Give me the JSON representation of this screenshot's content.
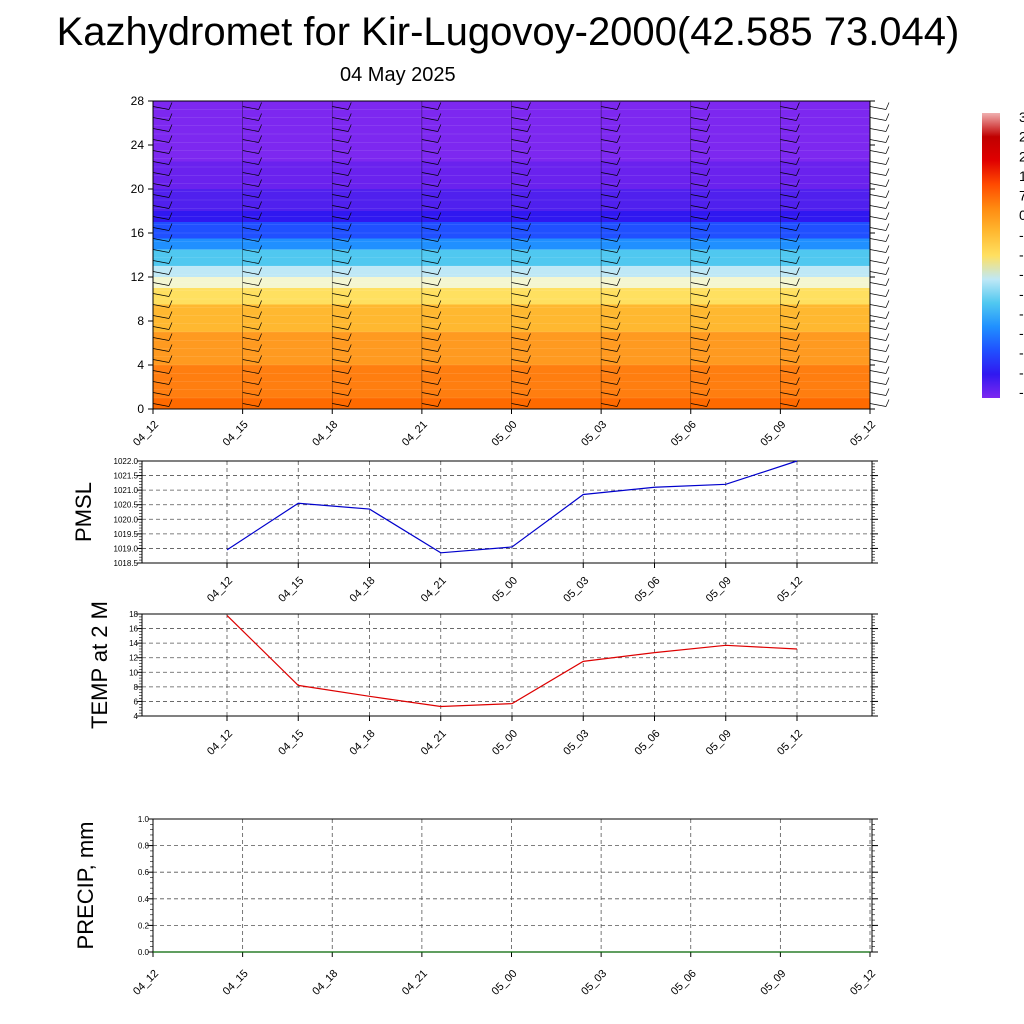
{
  "title": "Kazhydromet for Kir-Lugovoy-2000(42.585 73.044)",
  "subtitle": "04 May 2025",
  "colors": {
    "pmsl_line": "#0000cc",
    "temp_line": "#dd0000",
    "precip_line": "#006400",
    "grid": "#555555",
    "frame": "#000000"
  },
  "chart_data": [
    {
      "type": "heatmap",
      "title": "",
      "xlabel": "",
      "ylabel": "",
      "x_tick_labels": [
        "04_12",
        "04_15",
        "04_18",
        "04_21",
        "05_00",
        "05_03",
        "05_06",
        "05_09",
        "05_12"
      ],
      "y_ticks": [
        0,
        4,
        8,
        12,
        16,
        20,
        24,
        28
      ],
      "ylim": [
        0,
        28
      ],
      "note_overlay": "wind barbs",
      "colorbar_visible_labels": [
        "3",
        "2",
        "2",
        "1",
        "7",
        "0",
        "-",
        "-",
        "-",
        "-",
        "-",
        "-",
        "-",
        "-",
        "-"
      ],
      "color_bands": [
        {
          "from": 0,
          "to": 1,
          "color": "#ff6a00"
        },
        {
          "from": 1,
          "to": 4,
          "color": "#ff7e10"
        },
        {
          "from": 4,
          "to": 7,
          "color": "#ff9a20"
        },
        {
          "from": 7,
          "to": 9.5,
          "color": "#ffb830"
        },
        {
          "from": 9.5,
          "to": 11,
          "color": "#ffe060"
        },
        {
          "from": 11,
          "to": 12,
          "color": "#f4f6d0"
        },
        {
          "from": 12,
          "to": 13,
          "color": "#bfe8f6"
        },
        {
          "from": 13,
          "to": 14.5,
          "color": "#50c8f0"
        },
        {
          "from": 14.5,
          "to": 15.5,
          "color": "#2090ff"
        },
        {
          "from": 15.5,
          "to": 17,
          "color": "#2050ff"
        },
        {
          "from": 17,
          "to": 18,
          "color": "#3018f0"
        },
        {
          "from": 18,
          "to": 20,
          "color": "#5020ee"
        },
        {
          "from": 20,
          "to": 22.5,
          "color": "#6a22ee"
        },
        {
          "from": 22.5,
          "to": 28,
          "color": "#7d28f0"
        }
      ]
    },
    {
      "type": "line",
      "ylabel": "PMSL",
      "categories": [
        "04_12",
        "04_15",
        "04_18",
        "04_21",
        "05_00",
        "05_03",
        "05_06",
        "05_09",
        "05_12"
      ],
      "values": [
        1018.95,
        1020.55,
        1020.35,
        1018.85,
        1019.05,
        1020.85,
        1021.1,
        1021.2,
        1022.0
      ],
      "y_ticks": [
        1018.5,
        1019.0,
        1019.5,
        1020.0,
        1020.5,
        1021.0,
        1021.5,
        1022.0
      ],
      "y_tick_labels": [
        "1018.5",
        "1019.0",
        "1019.5",
        "1020.0",
        "1020.5",
        "1021.0",
        "1021.5",
        "1022.0"
      ],
      "ylim": [
        1018.5,
        1022.0
      ],
      "grid": true
    },
    {
      "type": "line",
      "ylabel": "TEMP at 2 M",
      "categories": [
        "04_12",
        "04_15",
        "04_18",
        "04_21",
        "05_00",
        "05_03",
        "05_06",
        "05_09",
        "05_12"
      ],
      "values": [
        17.8,
        8.2,
        6.7,
        5.3,
        5.7,
        11.5,
        12.7,
        13.7,
        13.2
      ],
      "y_ticks": [
        4,
        6,
        8,
        10,
        12,
        14,
        16,
        18
      ],
      "y_tick_labels": [
        "4",
        "6",
        "8",
        "10",
        "12",
        "14",
        "16",
        "18"
      ],
      "ylim": [
        4,
        18
      ],
      "grid": true
    },
    {
      "type": "line",
      "ylabel": "PRECIP, mm",
      "x_tick_labels": [
        "04_12",
        "04_15",
        "04_18",
        "04_21",
        "05_00",
        "05_03",
        "05_06",
        "05_09",
        "05_12"
      ],
      "values": [
        0,
        0,
        0,
        0,
        0,
        0,
        0,
        0,
        0
      ],
      "y_ticks": [
        0.0,
        0.2,
        0.4,
        0.6,
        0.8,
        1.0
      ],
      "y_tick_labels": [
        "0.0",
        "0.2",
        "0.4",
        "0.6",
        "0.8",
        "1.0"
      ],
      "ylim": [
        0,
        1
      ],
      "grid": true
    }
  ]
}
